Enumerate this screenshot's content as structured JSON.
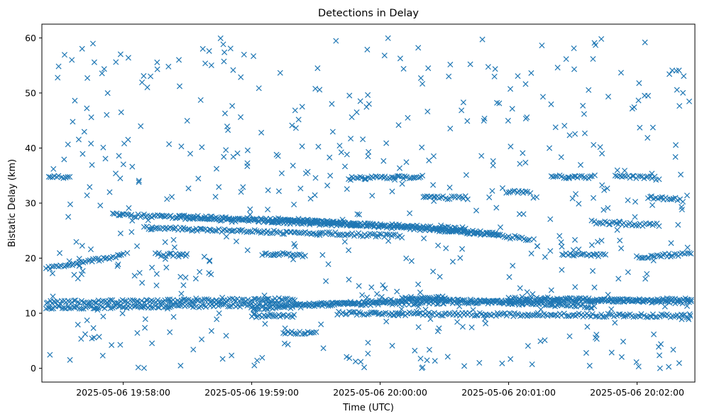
{
  "chart_data": {
    "type": "scatter",
    "title": "Detections in Delay",
    "xlabel": "Time (UTC)",
    "ylabel": "Bistatic Delay (km)",
    "marker": "x",
    "color": "#1f77b4",
    "grid": false,
    "legend": "none",
    "x_time_range": [
      "2025-05-06 19:57:22",
      "2025-05-06 20:02:27"
    ],
    "ylim": [
      -2.5,
      62.5
    ],
    "x_ticks": [
      {
        "label": "2025-05-06 19:58:00",
        "t": "2025-05-06T19:58:00Z"
      },
      {
        "label": "2025-05-06 19:59:00",
        "t": "2025-05-06T19:59:00Z"
      },
      {
        "label": "2025-05-06 20:00:00",
        "t": "2025-05-06T20:00:00Z"
      },
      {
        "label": "2025-05-06 20:01:00",
        "t": "2025-05-06T20:01:00Z"
      },
      {
        "label": "2025-05-06 20:02:00",
        "t": "2025-05-06T20:02:00Z"
      }
    ],
    "y_ticks": [
      0,
      10,
      20,
      30,
      40,
      50,
      60
    ],
    "tracks": [
      {
        "t": [
          "2025-05-06 19:57:24",
          "2025-05-06 19:58:00"
        ],
        "y": [
          18.2,
          20.5
        ]
      },
      {
        "t": [
          "2025-05-06 19:57:55",
          "2025-05-06 19:59:50"
        ],
        "y": [
          27.9,
          26.0
        ]
      },
      {
        "t": [
          "2025-05-06 19:58:10",
          "2025-05-06 20:00:10"
        ],
        "y": [
          25.5,
          24.0
        ]
      },
      {
        "t": [
          "2025-05-06 19:58:25",
          "2025-05-06 20:00:40"
        ],
        "y": [
          27.6,
          25.3
        ]
      },
      {
        "t": [
          "2025-05-06 19:59:10",
          "2025-05-06 20:00:55"
        ],
        "y": [
          27.2,
          24.4
        ]
      },
      {
        "t": [
          "2025-05-06 20:00:25",
          "2025-05-06 20:01:10"
        ],
        "y": [
          25.2,
          23.5
        ]
      },
      {
        "t": [
          "2025-05-06 19:57:24",
          "2025-05-06 20:02:25"
        ],
        "y": [
          11.0,
          12.5
        ]
      },
      {
        "t": [
          "2025-05-06 19:57:24",
          "2025-05-06 19:59:20"
        ],
        "y": [
          12.0,
          12.5
        ]
      },
      {
        "t": [
          "2025-05-06 19:59:00",
          "2025-05-06 20:00:30"
        ],
        "y": [
          10.8,
          12.8
        ]
      },
      {
        "t": [
          "2025-05-06 19:59:40",
          "2025-05-06 20:02:25"
        ],
        "y": [
          10.0,
          9.5
        ]
      },
      {
        "t": [
          "2025-05-06 20:00:10",
          "2025-05-06 20:01:40"
        ],
        "y": [
          12.8,
          11.2
        ]
      },
      {
        "t": [
          "2025-05-06 20:01:00",
          "2025-05-06 20:02:25"
        ],
        "y": [
          12.8,
          12.0
        ]
      },
      {
        "t": [
          "2025-05-06 19:57:25",
          "2025-05-06 19:57:35"
        ],
        "y": [
          34.8,
          34.8
        ]
      },
      {
        "t": [
          "2025-05-06 19:59:45",
          "2025-05-06 20:00:20"
        ],
        "y": [
          34.5,
          34.8
        ]
      },
      {
        "t": [
          "2025-05-06 20:00:20",
          "2025-05-06 20:00:40"
        ],
        "y": [
          31.0,
          31.0
        ]
      },
      {
        "t": [
          "2025-05-06 20:01:20",
          "2025-05-06 20:01:40"
        ],
        "y": [
          34.8,
          34.8
        ]
      },
      {
        "t": [
          "2025-05-06 20:01:40",
          "2025-05-06 20:02:10"
        ],
        "y": [
          26.5,
          26.0
        ]
      },
      {
        "t": [
          "2025-05-06 20:01:25",
          "2025-05-06 20:01:45"
        ],
        "y": [
          20.8,
          20.5
        ]
      },
      {
        "t": [
          "2025-05-06 20:02:00",
          "2025-05-06 20:02:25"
        ],
        "y": [
          20.2,
          20.8
        ]
      },
      {
        "t": [
          "2025-05-06 19:58:15",
          "2025-05-06 19:58:30"
        ],
        "y": [
          20.7,
          20.5
        ]
      },
      {
        "t": [
          "2025-05-06 19:59:05",
          "2025-05-06 19:59:25"
        ],
        "y": [
          20.8,
          20.5
        ]
      },
      {
        "t": [
          "2025-05-06 19:59:00",
          "2025-05-06 19:59:20"
        ],
        "y": [
          9.5,
          9.5
        ]
      },
      {
        "t": [
          "2025-05-06 19:59:15",
          "2025-05-06 19:59:30"
        ],
        "y": [
          6.5,
          6.5
        ]
      },
      {
        "t": [
          "2025-05-06 20:01:00",
          "2025-05-06 20:01:10"
        ],
        "y": [
          32.0,
          32.0
        ]
      },
      {
        "t": [
          "2025-05-06 20:02:05",
          "2025-05-06 20:02:20"
        ],
        "y": [
          31.0,
          30.8
        ]
      },
      {
        "t": [
          "2025-05-06 20:01:50",
          "2025-05-06 20:02:10"
        ],
        "y": [
          34.8,
          34.5
        ]
      }
    ],
    "clutter": {
      "count": 560,
      "seed": 20250506,
      "y_range": [
        0,
        60
      ]
    }
  }
}
